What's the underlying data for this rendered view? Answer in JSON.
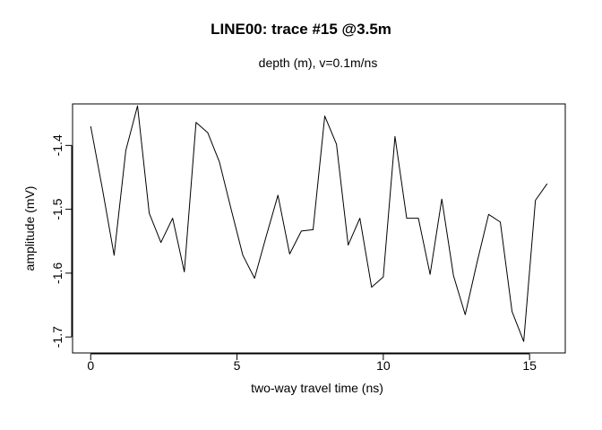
{
  "chart_data": {
    "type": "line",
    "title": "LINE00: trace #15 @3.5m",
    "subtitle": "depth (m),   v=0.1m/ns",
    "xlabel": "two-way travel time (ns)",
    "ylabel": "amplitude (mV)",
    "xlim": [
      -0.62,
      16.22
    ],
    "ylim": [
      -1.725,
      -1.335
    ],
    "xticks": [
      0,
      5,
      10,
      15
    ],
    "yticks": [
      -1.4,
      -1.5,
      -1.6,
      -1.7
    ],
    "xtick_labels": [
      "0",
      "5",
      "10",
      "15"
    ],
    "ytick_labels": [
      "-1.4",
      "-1.5",
      "-1.6",
      "-1.7"
    ],
    "grid": false,
    "line_color": "#000000",
    "series": [
      {
        "x": [
          0,
          0.4,
          0.8,
          1.2,
          1.6,
          2.0,
          2.4,
          2.8,
          3.2,
          3.6,
          4.0,
          4.4,
          4.8,
          5.2,
          5.6,
          6.0,
          6.4,
          6.8,
          7.2,
          7.6,
          8.0,
          8.4,
          8.8,
          9.2,
          9.6,
          10.0,
          10.4,
          10.8,
          11.2,
          11.6,
          12.0,
          12.4,
          12.8,
          13.2,
          13.6,
          14.0,
          14.4,
          14.8,
          15.2,
          15.6
        ],
        "y": [
          -1.37,
          -1.468,
          -1.572,
          -1.408,
          -1.338,
          -1.506,
          -1.552,
          -1.514,
          -1.598,
          -1.364,
          -1.38,
          -1.426,
          -1.5,
          -1.572,
          -1.608,
          -1.542,
          -1.478,
          -1.57,
          -1.534,
          -1.532,
          -1.354,
          -1.398,
          -1.556,
          -1.514,
          -1.622,
          -1.606,
          -1.386,
          -1.514,
          -1.514,
          -1.602,
          -1.484,
          -1.604,
          -1.665,
          -1.584,
          -1.508,
          -1.52,
          -1.66,
          -1.707,
          -1.486,
          -1.46
        ]
      }
    ]
  }
}
